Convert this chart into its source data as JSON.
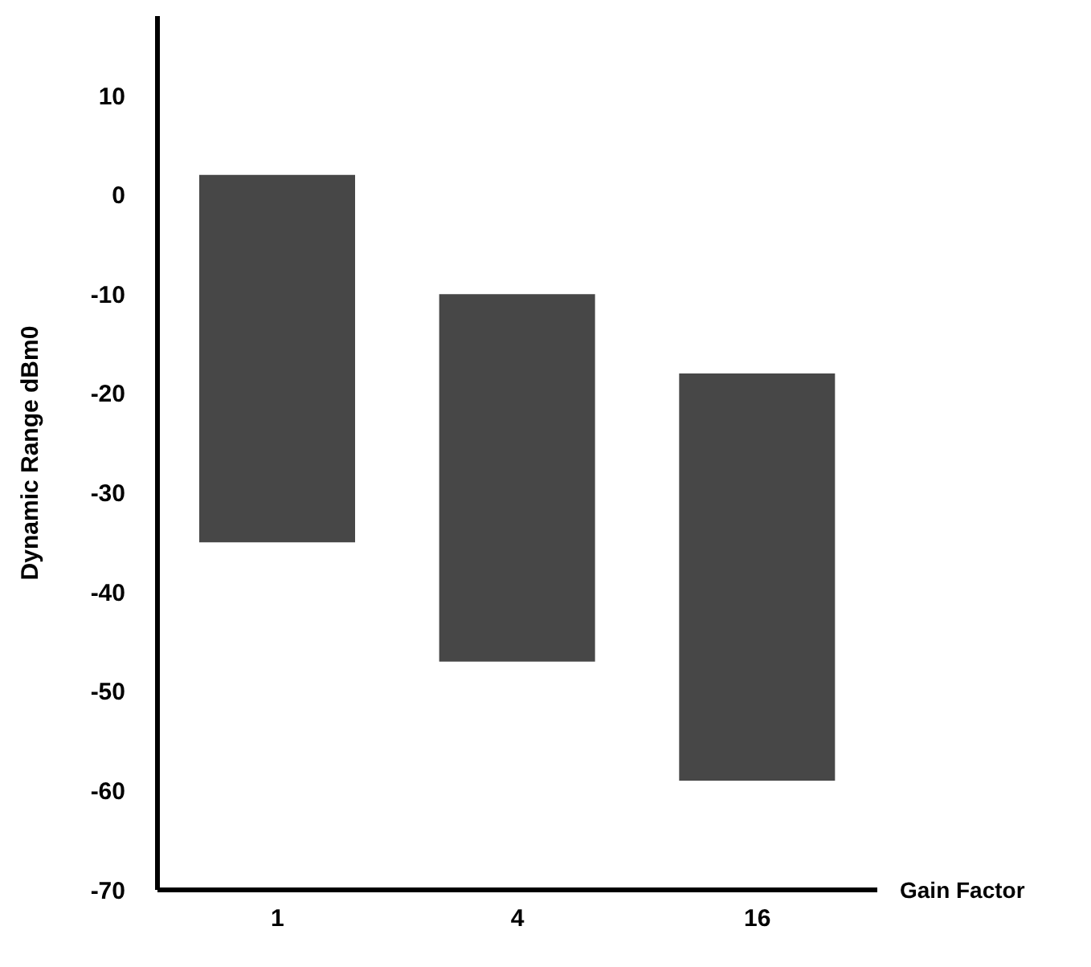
{
  "chart_data": {
    "type": "bar",
    "xlabel": "Gain Factor",
    "ylabel": "Dynamic Range dBm0",
    "categories": [
      "1",
      "4",
      "16"
    ],
    "base": [
      -35,
      -47,
      -59
    ],
    "values": [
      37,
      37,
      41
    ],
    "color": "#474747",
    "ylim": [
      -70,
      18
    ],
    "yticks": [
      -70,
      -60,
      -50,
      -40,
      -30,
      -20,
      -10,
      0,
      10
    ]
  }
}
